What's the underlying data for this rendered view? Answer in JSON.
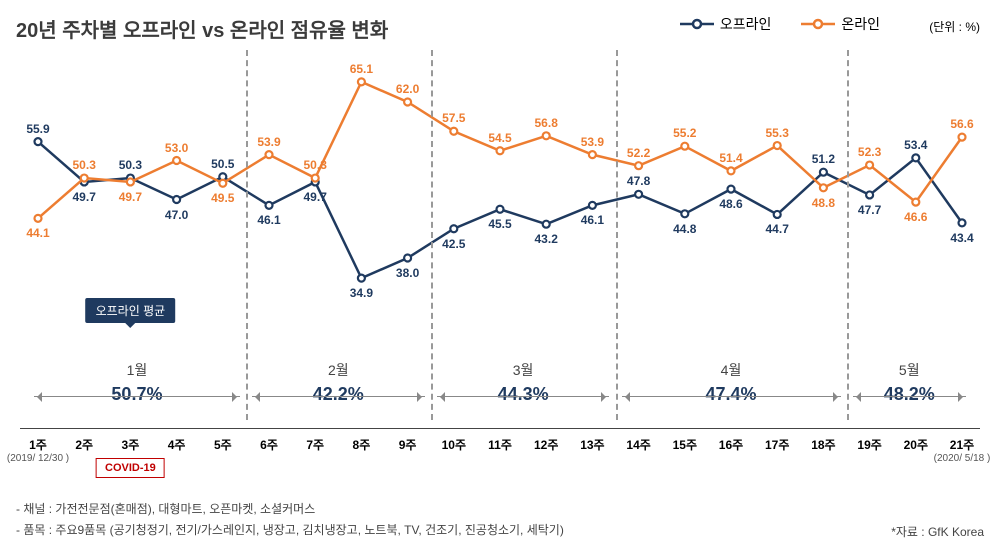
{
  "title": "20년 주차별 오프라인 vs 온라인 점유율 변화",
  "unit_label": "(단위 : %)",
  "legend": {
    "offline_label": "오프라인",
    "online_label": "온라인"
  },
  "colors": {
    "offline": "#1f3a5f",
    "online": "#ed7d31",
    "title": "#3b3b3b",
    "grid_dash": "#999999",
    "text": "#333333",
    "covid_red": "#c00000",
    "badge_bg": "#1f3a5f",
    "divider": "#444444",
    "background": "#ffffff"
  },
  "chart": {
    "type": "line",
    "ylim": [
      30,
      70
    ],
    "line_width": 2.5,
    "marker": "circle-open",
    "marker_size": 7,
    "marker_fill": "#ffffff",
    "xticks": [
      "1주",
      "2주",
      "3주",
      "4주",
      "5주",
      "6주",
      "7주",
      "8주",
      "9주",
      "10주",
      "11주",
      "12주",
      "13주",
      "14주",
      "15주",
      "16주",
      "17주",
      "18주",
      "19주",
      "20주",
      "21주"
    ],
    "xtick_sub": {
      "0": "(2019/\n12/30 )",
      "20": "(2020/\n5/18 )"
    },
    "series": {
      "offline": [
        55.9,
        49.7,
        50.3,
        47.0,
        50.5,
        46.1,
        49.7,
        34.9,
        38.0,
        42.5,
        45.5,
        43.2,
        46.1,
        47.8,
        44.8,
        48.6,
        44.7,
        51.2,
        47.7,
        53.4,
        43.4
      ],
      "online": [
        44.1,
        50.3,
        49.7,
        53.0,
        49.5,
        53.9,
        50.3,
        65.1,
        62.0,
        57.5,
        54.5,
        56.8,
        53.9,
        52.2,
        55.2,
        51.4,
        55.3,
        48.8,
        52.3,
        46.6,
        56.6
      ]
    },
    "label_offsets": {
      "offline": [
        "above",
        "below",
        "above",
        "below",
        "above",
        "below",
        "below",
        "below",
        "below",
        "below",
        "below",
        "below",
        "below",
        "above",
        "below",
        "below",
        "below",
        "above",
        "below",
        "above",
        "below"
      ],
      "online": [
        "below",
        "above",
        "below",
        "above",
        "below",
        "above",
        "above",
        "above",
        "above",
        "above",
        "above",
        "above",
        "above",
        "above",
        "above",
        "above",
        "above",
        "below",
        "above",
        "below",
        "above"
      ]
    },
    "segment_dividers_after_index": [
      4,
      8,
      12,
      17
    ]
  },
  "offline_avg_badge": "오프라인 평균",
  "months": [
    {
      "label": "1월",
      "pct": "50.7%",
      "span": [
        0,
        4
      ]
    },
    {
      "label": "2월",
      "pct": "42.2%",
      "span": [
        5,
        8
      ]
    },
    {
      "label": "3월",
      "pct": "44.3%",
      "span": [
        9,
        12
      ]
    },
    {
      "label": "4월",
      "pct": "47.4%",
      "span": [
        13,
        17
      ]
    },
    {
      "label": "5월",
      "pct": "48.2%",
      "span": [
        18,
        20
      ]
    }
  ],
  "covid_label": "COVID-19",
  "covid_under_index": 2,
  "footer_line1": "- 채널 : 가전전문점(혼매점), 대형마트, 오픈마켓, 소셜커머스",
  "footer_line2": "- 품목 : 주요9품목 (공기청정기, 전기/가스레인지, 냉장고, 김치냉장고, 노트북, TV, 건조기, 진공청소기, 세탁기)",
  "source": "*자료 : GfK Korea"
}
